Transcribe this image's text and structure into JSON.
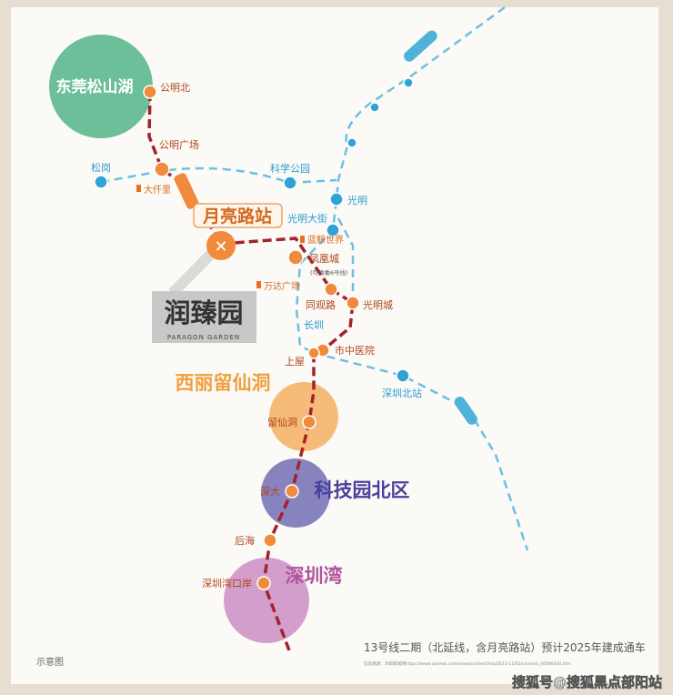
{
  "regions": {
    "songshan_lake": "东莞松山湖",
    "xili": "西丽留仙洞",
    "tech_park": "科技园北区",
    "shenzhen_bay": "深圳湾"
  },
  "highlight_station": "月亮路站",
  "project": {
    "name": "润臻园",
    "name_en": "PARAGON GARDEN"
  },
  "line13_stations": [
    "公明北",
    "公明广场",
    "凤凰城",
    "同观路",
    "光明城",
    "市中医院",
    "上屋",
    "留仙洞",
    "深大",
    "后海",
    "深圳湾口岸"
  ],
  "interchange_note": "(可换乘6号线)",
  "blue_stations": [
    "松岗",
    "科学公园",
    "光明",
    "光明大街",
    "长圳",
    "深圳北站"
  ],
  "landmarks": [
    "大仟里",
    "蓝鲸世界",
    "万达广场"
  ],
  "footer": {
    "diagram_note": "示意图",
    "caption": "13号线二期（北延线，含月亮路站）预计2025年建成通车",
    "source": "信息来源：深圳新闻网https://www.sznews.com/news/content/mb/2023-11/02/content_30566430.htm"
  },
  "watermark": "搜狐号@搜狐黑点部阳站",
  "colors": {
    "line13": "#a3232b",
    "blue_line": "#4fb3d9",
    "station_orange": "#f08a3c",
    "green": "#6cbf98",
    "orange_circle": "#f5b46a",
    "purple": "#7a76b8",
    "pink": "#cf94c6"
  }
}
